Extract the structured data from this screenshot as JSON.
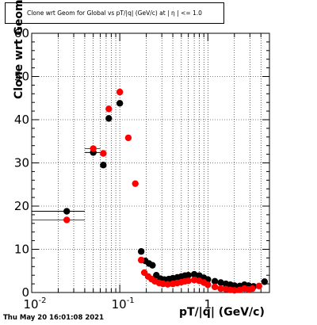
{
  "title": "Clone wrt Geom for Global vs pT/|q| (GeV/c) at | η | <= 1.0",
  "footer": "Thu May 20 16:01:08 2021",
  "chart_data": {
    "type": "scatter",
    "title": "Clone wrt Geom for Global vs pT/|q| (GeV/c) at | η | <= 1.0",
    "xlabel": "pT/|q| (GeV/c)",
    "ylabel": "Clone wrt Geom (%)",
    "xscale": "log",
    "xlim": [
      0.01,
      5
    ],
    "ylim": [
      0,
      60
    ],
    "xticks": [
      {
        "value": 0.01,
        "label": "10^-2"
      },
      {
        "value": 0.1,
        "label": "10^-1"
      },
      {
        "value": 1,
        "label": "1"
      }
    ],
    "yticks": [
      0,
      10,
      20,
      30,
      40,
      50,
      60
    ],
    "grid": true,
    "series": [
      {
        "color": "#000000",
        "points": [
          {
            "x": 0.025,
            "y": 18.8,
            "xerr": [
              0.01,
              0.04
            ]
          },
          {
            "x": 0.05,
            "y": 32.4,
            "xerr": [
              0.04,
              0.06
            ]
          },
          {
            "x": 0.065,
            "y": 29.5
          },
          {
            "x": 0.075,
            "y": 40.3
          },
          {
            "x": 0.1,
            "y": 43.8
          },
          {
            "x": 0.175,
            "y": 9.5
          },
          {
            "x": 0.195,
            "y": 7.3
          },
          {
            "x": 0.215,
            "y": 6.7
          },
          {
            "x": 0.235,
            "y": 6.3
          },
          {
            "x": 0.26,
            "y": 4.0
          },
          {
            "x": 0.29,
            "y": 3.2
          },
          {
            "x": 0.32,
            "y": 3.0
          },
          {
            "x": 0.36,
            "y": 3.1
          },
          {
            "x": 0.4,
            "y": 3.3
          },
          {
            "x": 0.45,
            "y": 3.5
          },
          {
            "x": 0.5,
            "y": 3.7
          },
          {
            "x": 0.55,
            "y": 3.9
          },
          {
            "x": 0.6,
            "y": 4.0
          },
          {
            "x": 0.7,
            "y": 4.2
          },
          {
            "x": 0.8,
            "y": 3.9
          },
          {
            "x": 0.9,
            "y": 3.4
          },
          {
            "x": 1.0,
            "y": 3.0
          },
          {
            "x": 1.2,
            "y": 2.6
          },
          {
            "x": 1.4,
            "y": 2.3
          },
          {
            "x": 1.6,
            "y": 2.0
          },
          {
            "x": 1.8,
            "y": 1.8
          },
          {
            "x": 2.0,
            "y": 1.6
          },
          {
            "x": 2.3,
            "y": 1.5
          },
          {
            "x": 2.6,
            "y": 1.8
          },
          {
            "x": 2.9,
            "y": 1.6
          },
          {
            "x": 3.3,
            "y": 1.4
          },
          {
            "x": 4.4,
            "y": 2.5
          }
        ]
      },
      {
        "color": "#ff0000",
        "points": [
          {
            "x": 0.025,
            "y": 16.8,
            "xerr": [
              0.01,
              0.04
            ]
          },
          {
            "x": 0.05,
            "y": 33.3,
            "xerr": [
              0.04,
              0.06
            ]
          },
          {
            "x": 0.065,
            "y": 32.2
          },
          {
            "x": 0.075,
            "y": 42.5
          },
          {
            "x": 0.1,
            "y": 46.4
          },
          {
            "x": 0.125,
            "y": 35.8
          },
          {
            "x": 0.15,
            "y": 25.2
          },
          {
            "x": 0.175,
            "y": 7.5
          },
          {
            "x": 0.19,
            "y": 4.6
          },
          {
            "x": 0.21,
            "y": 3.7
          },
          {
            "x": 0.23,
            "y": 3.1
          },
          {
            "x": 0.25,
            "y": 2.6
          },
          {
            "x": 0.28,
            "y": 2.2
          },
          {
            "x": 0.31,
            "y": 2.0
          },
          {
            "x": 0.35,
            "y": 1.9
          },
          {
            "x": 0.4,
            "y": 2.0
          },
          {
            "x": 0.45,
            "y": 2.2
          },
          {
            "x": 0.5,
            "y": 2.4
          },
          {
            "x": 0.55,
            "y": 2.6
          },
          {
            "x": 0.6,
            "y": 2.7
          },
          {
            "x": 0.7,
            "y": 2.9
          },
          {
            "x": 0.8,
            "y": 2.7
          },
          {
            "x": 0.9,
            "y": 2.3
          },
          {
            "x": 1.0,
            "y": 1.8
          },
          {
            "x": 1.2,
            "y": 1.3
          },
          {
            "x": 1.4,
            "y": 0.9
          },
          {
            "x": 1.6,
            "y": 0.8
          },
          {
            "x": 1.8,
            "y": 0.6
          },
          {
            "x": 2.0,
            "y": 0.5
          },
          {
            "x": 2.3,
            "y": 0.6
          },
          {
            "x": 2.6,
            "y": 0.9
          },
          {
            "x": 2.9,
            "y": 0.7
          },
          {
            "x": 3.2,
            "y": 0.9
          },
          {
            "x": 3.8,
            "y": 1.5
          }
        ]
      }
    ]
  }
}
